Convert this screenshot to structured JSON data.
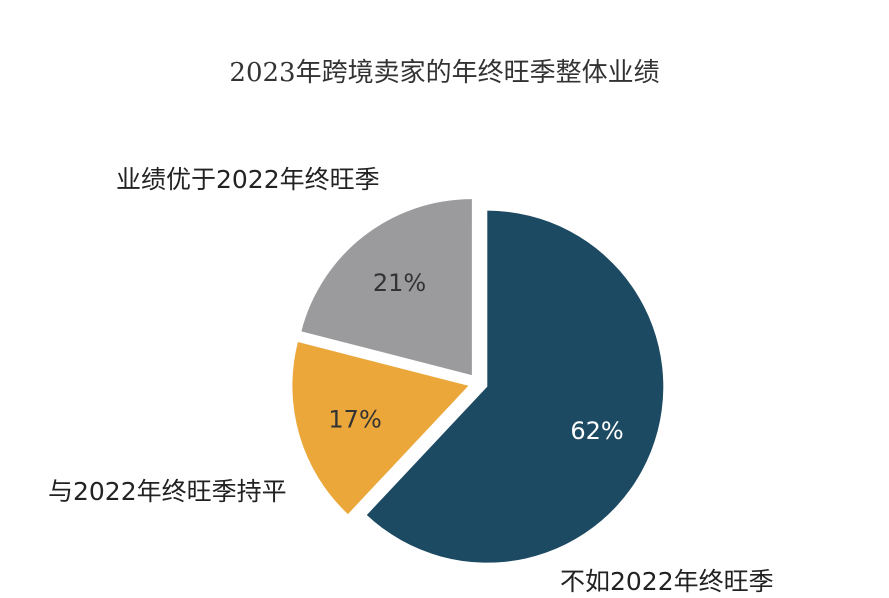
{
  "chart_data": {
    "type": "pie",
    "title": "2023年跨境卖家的年终旺季整体业绩",
    "slices": [
      {
        "label": "不如2022年终旺季",
        "value": 62,
        "value_label": "62%",
        "color": "#1d4a63",
        "text_color": "#ffffff"
      },
      {
        "label": "与2022年终旺季持平",
        "value": 17,
        "value_label": "17%",
        "color": "#eba73a",
        "text_color": "#333333"
      },
      {
        "label": "业绩优于2022年终旺季",
        "value": 21,
        "value_label": "21%",
        "color": "#9b9b9e",
        "text_color": "#333333"
      }
    ],
    "start_angle": "12 o'clock",
    "direction": "clockwise",
    "exploded": true,
    "legend": "none"
  }
}
